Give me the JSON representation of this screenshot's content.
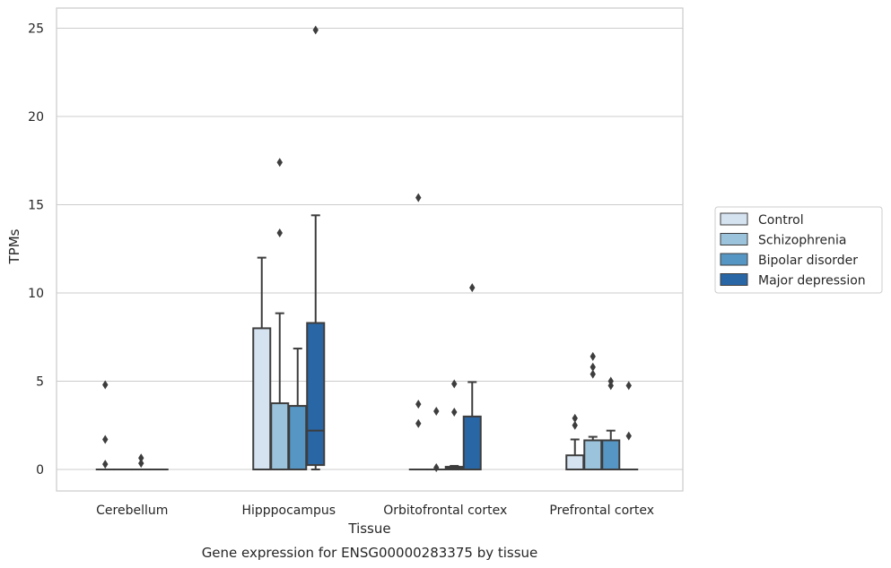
{
  "chart_data": {
    "type": "box",
    "xlabel": "Tissue",
    "ylabel": "TPMs",
    "caption": "Gene expression for ENSG00000283375 by tissue",
    "ylim": [
      -1.2,
      26.2
    ],
    "yticks": [
      0,
      5,
      10,
      15,
      20,
      25
    ],
    "grid": "horizontal",
    "legend_position": "right",
    "categories": [
      "Cerebellum",
      "Hipppocampus",
      "Orbitofrontal cortex",
      "Prefrontal cortex"
    ],
    "series": [
      {
        "name": "Control",
        "color": "#d5e3f1",
        "boxes": [
          {
            "whisker_low": 0,
            "q1": 0,
            "median": 0,
            "q3": 0,
            "whisker_high": 0,
            "outliers": [
              0.3,
              1.7,
              4.8
            ]
          },
          {
            "whisker_low": 0,
            "q1": 0,
            "median": 0,
            "q3": 8.0,
            "whisker_high": 12.0,
            "outliers": []
          },
          {
            "whisker_low": 0,
            "q1": 0,
            "median": 0,
            "q3": 0,
            "whisker_high": 0,
            "outliers": [
              2.6,
              3.7,
              15.4
            ]
          },
          {
            "whisker_low": 0,
            "q1": 0,
            "median": 0,
            "q3": 0.8,
            "whisker_high": 1.7,
            "outliers": [
              2.5,
              2.9
            ]
          }
        ]
      },
      {
        "name": "Schizophrenia",
        "color": "#9cc3dc",
        "boxes": [
          {
            "whisker_low": 0,
            "q1": 0,
            "median": 0,
            "q3": 0,
            "whisker_high": 0,
            "outliers": []
          },
          {
            "whisker_low": 0,
            "q1": 0,
            "median": 0,
            "q3": 3.75,
            "whisker_high": 8.85,
            "outliers": [
              13.4,
              17.4
            ]
          },
          {
            "whisker_low": 0,
            "q1": 0,
            "median": 0,
            "q3": 0,
            "whisker_high": 0,
            "outliers": [
              0.1,
              3.3
            ]
          },
          {
            "whisker_low": 0,
            "q1": 0,
            "median": 1.65,
            "q3": 1.65,
            "whisker_high": 1.85,
            "outliers": [
              5.4,
              5.8,
              6.4
            ]
          }
        ]
      },
      {
        "name": "Bipolar disorder",
        "color": "#5596c4",
        "boxes": [
          {
            "whisker_low": 0,
            "q1": 0,
            "median": 0,
            "q3": 0,
            "whisker_high": 0,
            "outliers": [
              0.35,
              0.65
            ]
          },
          {
            "whisker_low": 0,
            "q1": 0,
            "median": 0,
            "q3": 3.6,
            "whisker_high": 6.85,
            "outliers": []
          },
          {
            "whisker_low": 0,
            "q1": 0,
            "median": 0.1,
            "q3": 0.15,
            "whisker_high": 0.2,
            "outliers": [
              3.25,
              4.85
            ]
          },
          {
            "whisker_low": 0,
            "q1": 0,
            "median": 1.65,
            "q3": 1.65,
            "whisker_high": 2.2,
            "outliers": [
              4.75,
              5.0
            ]
          }
        ]
      },
      {
        "name": "Major depression",
        "color": "#2866a6",
        "boxes": [
          {
            "whisker_low": 0,
            "q1": 0,
            "median": 0,
            "q3": 0,
            "whisker_high": 0,
            "outliers": []
          },
          {
            "whisker_low": 0,
            "q1": 0.25,
            "median": 2.2,
            "q3": 8.3,
            "whisker_high": 14.4,
            "outliers": [
              24.9
            ]
          },
          {
            "whisker_low": 0,
            "q1": 0,
            "median": 0,
            "q3": 3.0,
            "whisker_high": 4.95,
            "outliers": [
              10.3
            ]
          },
          {
            "whisker_low": 0,
            "q1": 0,
            "median": 0,
            "q3": 0,
            "whisker_high": 0,
            "outliers": [
              1.9,
              4.75
            ]
          }
        ]
      }
    ]
  }
}
